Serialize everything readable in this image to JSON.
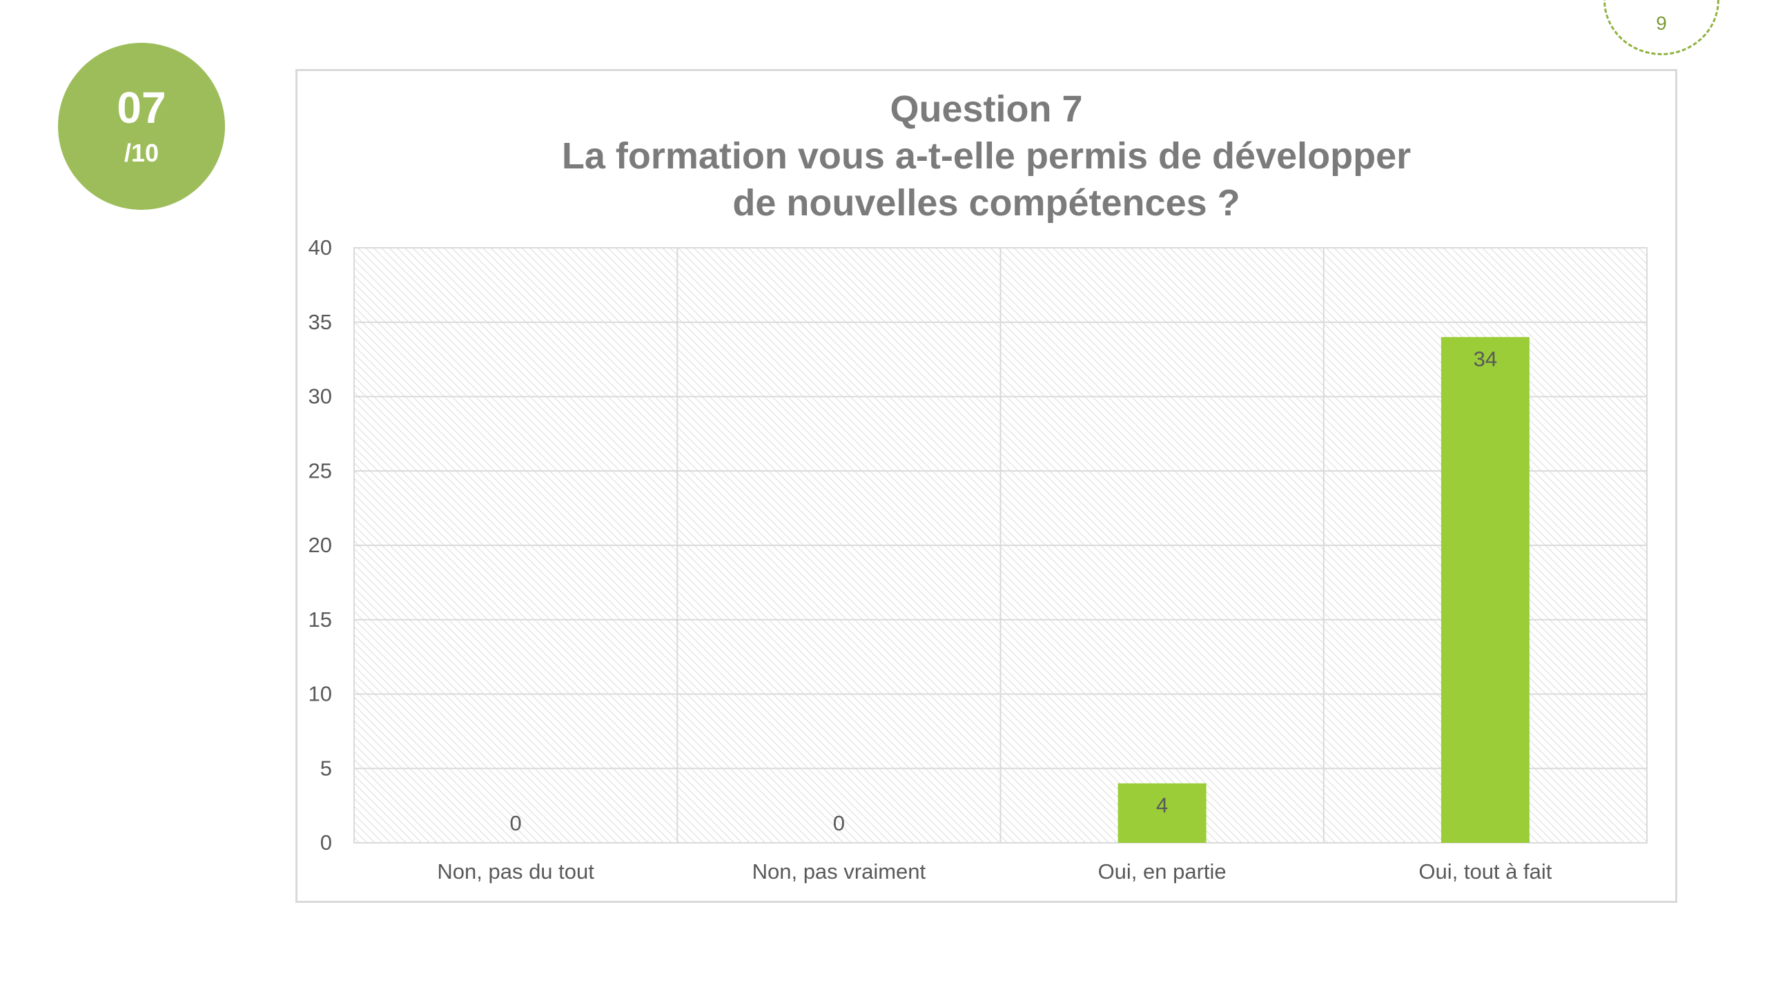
{
  "page": {
    "number": "9"
  },
  "badge": {
    "number": "07",
    "total": "/10"
  },
  "chart_data": {
    "type": "bar",
    "title_lines": [
      "Question 7",
      "La formation vous a-t-elle permis de développer",
      "de nouvelles compétences ?"
    ],
    "categories": [
      "Non, pas du tout",
      "Non, pas vraiment",
      "Oui, en partie",
      "Oui, tout à fait"
    ],
    "values": [
      0,
      0,
      4,
      34
    ],
    "data_labels": [
      "0",
      "0",
      "4",
      "34"
    ],
    "xlabel": "",
    "ylabel": "",
    "ylim": [
      0,
      40
    ],
    "yticks": [
      0,
      5,
      10,
      15,
      20,
      25,
      30,
      35,
      40
    ],
    "grid": true,
    "legend": "none",
    "colors": {
      "bar": "#9acd38",
      "grid": "#d9d9d9",
      "plot_hatch": "#e6e6e6",
      "text": "#595959",
      "title": "#7b7b7b",
      "badge": "#9dbd5a",
      "page_marker": "#8fb33f"
    }
  }
}
